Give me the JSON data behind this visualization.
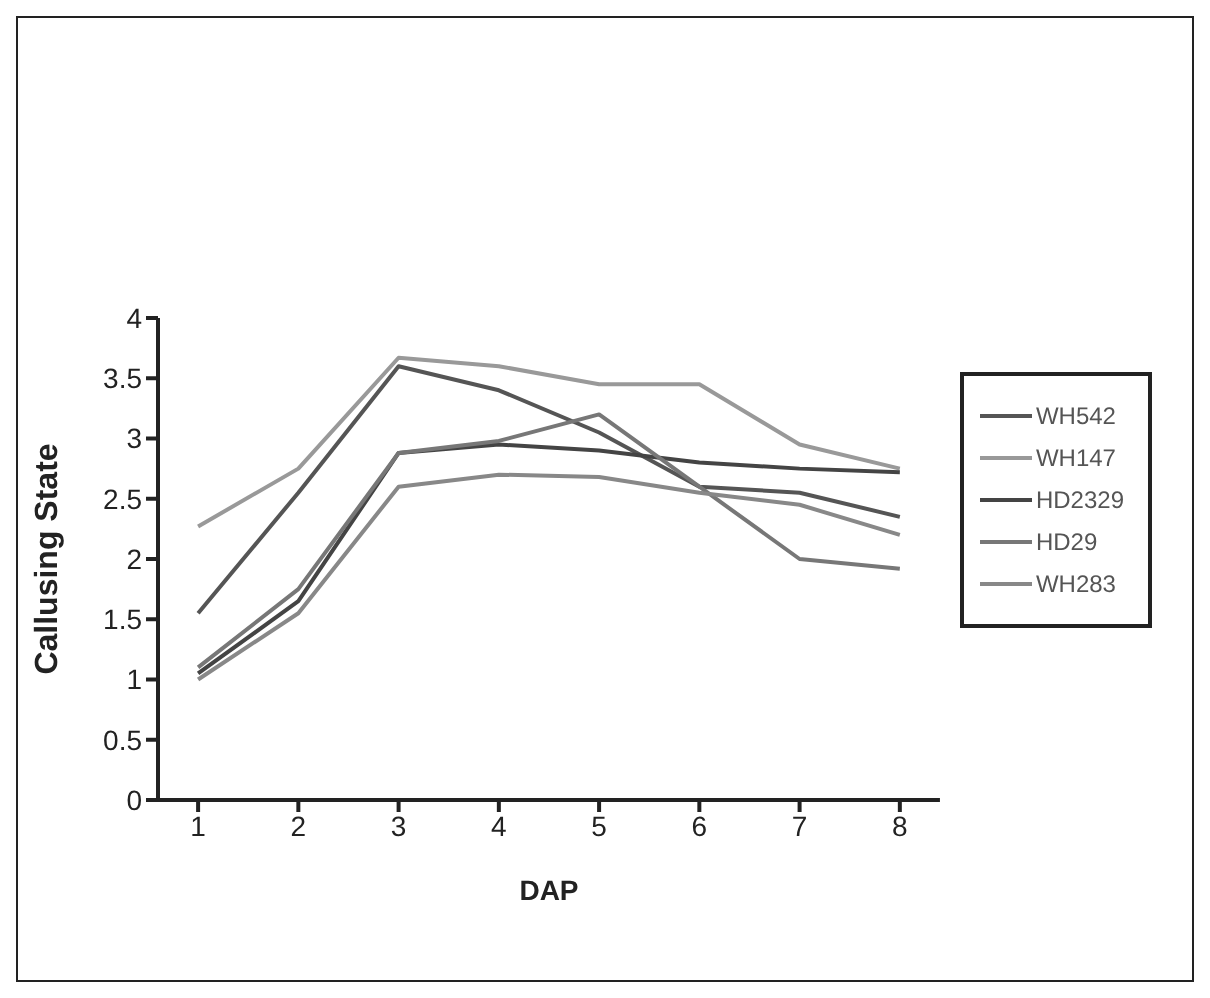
{
  "chart_data": {
    "type": "line",
    "xlabel": "DAP",
    "ylabel": "Callusing State",
    "x": [
      1,
      2,
      3,
      4,
      5,
      6,
      7,
      8
    ],
    "xlim": [
      0.6,
      8.4
    ],
    "xticks": [
      1,
      2,
      3,
      4,
      5,
      6,
      7,
      8
    ],
    "ylim": [
      0,
      4
    ],
    "yticks": [
      0,
      0.5,
      1,
      1.5,
      2,
      2.5,
      3,
      3.5,
      4
    ],
    "grid": false,
    "legend": "right",
    "marker": "none",
    "line_style": "solid",
    "series": [
      {
        "name": "WH542",
        "color": "#555555",
        "values": [
          1.55,
          2.55,
          3.6,
          3.4,
          3.05,
          2.6,
          2.55,
          2.35
        ]
      },
      {
        "name": "WH147",
        "color": "#999999",
        "values": [
          2.27,
          2.75,
          3.67,
          3.6,
          3.45,
          3.45,
          2.95,
          2.75
        ]
      },
      {
        "name": "HD2329",
        "color": "#444444",
        "values": [
          1.05,
          1.65,
          2.88,
          2.95,
          2.9,
          2.8,
          2.75,
          2.72
        ]
      },
      {
        "name": "HD29",
        "color": "#777777",
        "values": [
          1.1,
          1.75,
          2.88,
          2.98,
          3.2,
          2.6,
          2.0,
          1.92
        ]
      },
      {
        "name": "WH283",
        "color": "#888888",
        "values": [
          1.0,
          1.55,
          2.6,
          2.7,
          2.68,
          2.55,
          2.45,
          2.2
        ]
      }
    ]
  }
}
